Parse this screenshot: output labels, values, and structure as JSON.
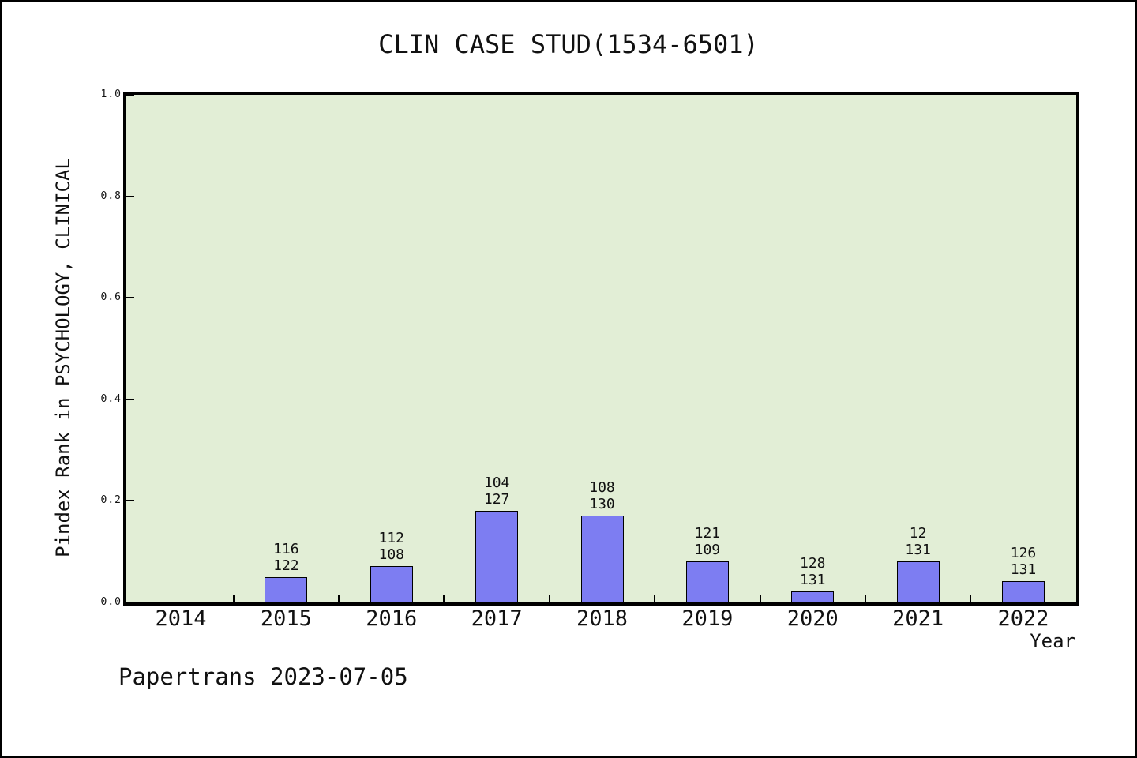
{
  "page": {
    "title": "CLIN CASE STUD(1534-6501)",
    "footer": "Papertrans 2023-07-05"
  },
  "chart_data": {
    "type": "bar",
    "title": "CLIN CASE STUD(1534-6501)",
    "xlabel": "Year",
    "ylabel": "Pindex Rank in PSYCHOLOGY, CLINICAL",
    "ylim": [
      0.0,
      1.0
    ],
    "yticks": [
      "0.0",
      "0.2",
      "0.4",
      "0.6",
      "0.8",
      "1.0"
    ],
    "grid": false,
    "legend": false,
    "plot_background": "#E2EED6",
    "bar_color": "#7D7DF2",
    "bar_edge_color": "#000000",
    "categories": [
      "2014",
      "2015",
      "2016",
      "2017",
      "2018",
      "2019",
      "2020",
      "2021",
      "2022"
    ],
    "bars": [
      {
        "year": "2014",
        "value": 0,
        "label_top": "",
        "label_bottom": ""
      },
      {
        "year": "2015",
        "value": 0.05,
        "label_top": "116",
        "label_bottom": "122"
      },
      {
        "year": "2016",
        "value": 0.072,
        "label_top": "112",
        "label_bottom": "108"
      },
      {
        "year": "2017",
        "value": 0.18,
        "label_top": "104",
        "label_bottom": "127"
      },
      {
        "year": "2018",
        "value": 0.171,
        "label_top": "108",
        "label_bottom": "130"
      },
      {
        "year": "2019",
        "value": 0.081,
        "label_top": "121",
        "label_bottom": "109"
      },
      {
        "year": "2020",
        "value": 0.022,
        "label_top": "128",
        "label_bottom": "131"
      },
      {
        "year": "2021",
        "value": 0.081,
        "label_top": "12",
        "label_bottom": "131"
      },
      {
        "year": "2022",
        "value": 0.042,
        "label_top": "126",
        "label_bottom": "131"
      }
    ]
  }
}
